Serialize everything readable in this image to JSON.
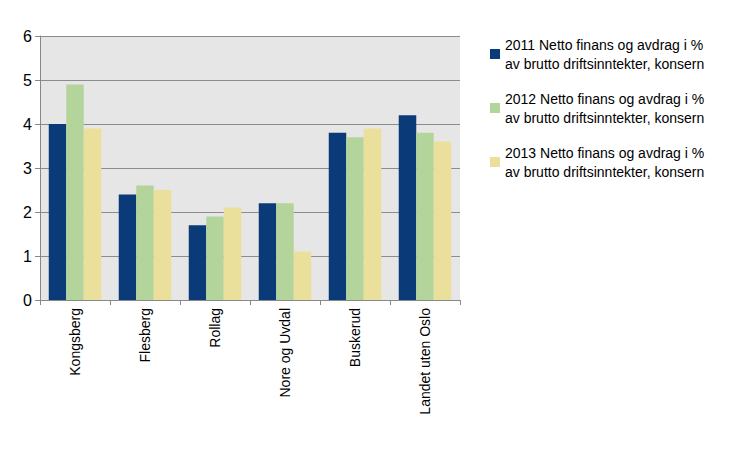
{
  "chart_data": {
    "type": "bar",
    "categories": [
      "Kongsberg",
      "Flesberg",
      "Rollag",
      "Nore og Uvdal",
      "Buskerud",
      "Landet uten Oslo"
    ],
    "series": [
      {
        "name": "2011 Netto finans og avdrag i % av brutto driftsinntekter, konsern",
        "color": "#0b3a78",
        "values": [
          4.0,
          2.4,
          1.7,
          2.2,
          3.8,
          4.2
        ]
      },
      {
        "name": "2012 Netto finans og avdrag i % av brutto driftsinntekter, konsern",
        "color": "#b3d49a",
        "values": [
          4.9,
          2.6,
          1.9,
          2.2,
          3.7,
          3.8
        ]
      },
      {
        "name": "2013 Netto finans og avdrag i % av brutto driftsinntekter, konsern",
        "color": "#ebdf9c",
        "values": [
          3.9,
          2.5,
          2.1,
          1.1,
          3.9,
          3.6
        ]
      }
    ],
    "ylim": [
      0,
      6
    ],
    "yticks": [
      0,
      1,
      2,
      3,
      4,
      5,
      6
    ],
    "grid": true,
    "legend": "right"
  }
}
